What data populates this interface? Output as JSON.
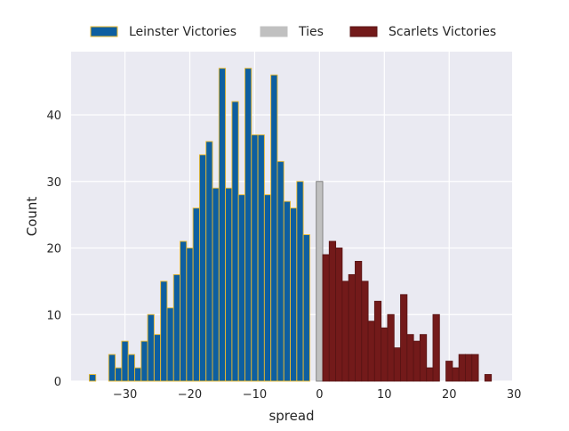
{
  "chart_data": {
    "type": "bar",
    "xlabel": "spread",
    "ylabel": "Count",
    "xlim": [
      -38.3,
      29.7
    ],
    "ylim": [
      0,
      49.5
    ],
    "xticks": [
      -30,
      -20,
      -10,
      0,
      10,
      20,
      30
    ],
    "xtick_labels": [
      "−30",
      "−20",
      "−10",
      "0",
      "10",
      "20",
      "30"
    ],
    "yticks": [
      0,
      10,
      20,
      30,
      40
    ],
    "ytick_labels": [
      "0",
      "10",
      "20",
      "30",
      "40"
    ],
    "grid": true,
    "legend_position": "top-center",
    "background_color": "#EAEAF2",
    "legend": [
      {
        "label": "Leinster Victories",
        "color": "#0E5FA0",
        "edge": "#E8B82E"
      },
      {
        "label": "Ties",
        "color": "#C0C0C0",
        "edge": "#C0C0C0"
      },
      {
        "label": "Scarlets Victories",
        "color": "#731A1A",
        "edge": "#5A1414"
      }
    ],
    "series": [
      {
        "name": "Leinster Victories",
        "color": "#0E5FA0",
        "edge": "#E8B82E",
        "x": [
          -35,
          -34,
          -33,
          -32,
          -31,
          -30,
          -29,
          -28,
          -27,
          -26,
          -25,
          -24,
          -23,
          -22,
          -21,
          -20,
          -19,
          -18,
          -17,
          -16,
          -15,
          -14,
          -13,
          -12,
          -11,
          -10,
          -9,
          -8,
          -7,
          -6,
          -5,
          -4,
          -3,
          -2,
          -1
        ],
        "values": [
          1,
          0,
          0,
          4,
          2,
          6,
          4,
          2,
          6,
          10,
          7,
          15,
          11,
          16,
          21,
          20,
          26,
          34,
          36,
          29,
          47,
          29,
          42,
          28,
          47,
          37,
          37,
          28,
          46,
          33,
          27,
          26,
          30,
          22,
          0
        ]
      },
      {
        "name": "Ties",
        "color": "#C0C0C0",
        "edge": "#7A7A7A",
        "x": [
          0
        ],
        "values": [
          30
        ]
      },
      {
        "name": "Scarlets Victories",
        "color": "#731A1A",
        "edge": "#5A1414",
        "x": [
          1,
          2,
          3,
          4,
          5,
          6,
          7,
          8,
          9,
          10,
          11,
          12,
          13,
          14,
          15,
          16,
          17,
          18,
          19,
          20,
          21,
          22,
          23,
          24,
          25,
          26,
          27
        ],
        "values": [
          19,
          21,
          20,
          15,
          16,
          18,
          15,
          9,
          12,
          8,
          10,
          5,
          13,
          7,
          6,
          7,
          2,
          10,
          0,
          3,
          2,
          4,
          4,
          4,
          0,
          1,
          0
        ]
      }
    ]
  }
}
